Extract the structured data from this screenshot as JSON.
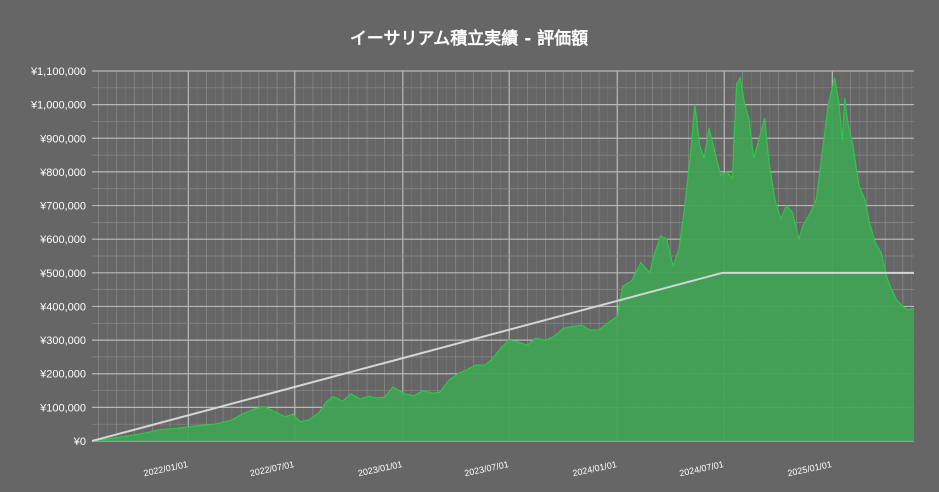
{
  "chart_data": {
    "type": "area",
    "title": "イーサリアム積立実績 ‐ 評価額",
    "xlabel": "",
    "ylabel": "",
    "x_range": [
      "2021/07/21",
      "2025/05/20"
    ],
    "ylim": [
      0,
      1100000
    ],
    "y_ticks": [
      0,
      100000,
      200000,
      300000,
      400000,
      500000,
      600000,
      700000,
      800000,
      900000,
      1000000,
      1100000
    ],
    "y_tick_labels": [
      "¥0",
      "¥100,000",
      "¥200,000",
      "¥300,000",
      "¥400,000",
      "¥500,000",
      "¥600,000",
      "¥700,000",
      "¥800,000",
      "¥900,000",
      "¥1,000,000",
      "¥1,100,000"
    ],
    "x_ticks": [
      "2022/01/01",
      "2022/07/01",
      "2023/01/01",
      "2023/07/01",
      "2024/01/01",
      "2024/07/01",
      "2025/01/01"
    ],
    "x_tick_labels": [
      "2022/01/01",
      "2022/07/01",
      "2023/01/01",
      "2023/07/01",
      "2024/01/01",
      "2024/07/01",
      "2025/01/01"
    ],
    "grid": true,
    "legend": "none",
    "colors": {
      "background": "#666666",
      "area_fill": "#3fa454",
      "area_line": "#2fc74a",
      "cost_line": "#d6d6d6",
      "grid": "#8a8a8a",
      "text": "#ffffff"
    },
    "series": [
      {
        "kind": "area",
        "values": [
          [
            "2021/07/21",
            0
          ],
          [
            "2021/09/01",
            10000
          ],
          [
            "2021/10/15",
            22000
          ],
          [
            "2021/11/15",
            34000
          ],
          [
            "2021/12/15",
            38000
          ],
          [
            "2022/01/15",
            45000
          ],
          [
            "2022/02/15",
            50000
          ],
          [
            "2022/03/15",
            62000
          ],
          [
            "2022/04/05",
            82000
          ],
          [
            "2022/04/25",
            96000
          ],
          [
            "2022/05/10",
            102000
          ],
          [
            "2022/05/25",
            90000
          ],
          [
            "2022/06/15",
            72000
          ],
          [
            "2022/06/28",
            80000
          ],
          [
            "2022/07/10",
            57000
          ],
          [
            "2022/07/25",
            63000
          ],
          [
            "2022/08/10",
            82000
          ],
          [
            "2022/08/25",
            118000
          ],
          [
            "2022/09/05",
            132000
          ],
          [
            "2022/09/20",
            118000
          ],
          [
            "2022/10/05",
            140000
          ],
          [
            "2022/10/20",
            125000
          ],
          [
            "2022/11/05",
            133000
          ],
          [
            "2022/11/15",
            128000
          ],
          [
            "2022/12/01",
            130000
          ],
          [
            "2022/12/15",
            160000
          ],
          [
            "2022/12/25",
            150000
          ],
          [
            "2023/01/05",
            140000
          ],
          [
            "2023/01/20",
            135000
          ],
          [
            "2023/02/05",
            150000
          ],
          [
            "2023/02/20",
            142000
          ],
          [
            "2023/03/05",
            145000
          ],
          [
            "2023/03/20",
            180000
          ],
          [
            "2023/04/05",
            200000
          ],
          [
            "2023/04/20",
            212000
          ],
          [
            "2023/05/05",
            226000
          ],
          [
            "2023/05/20",
            225000
          ],
          [
            "2023/06/01",
            242000
          ],
          [
            "2023/06/15",
            272000
          ],
          [
            "2023/06/30",
            300000
          ],
          [
            "2023/07/15",
            295000
          ],
          [
            "2023/08/01",
            285000
          ],
          [
            "2023/08/15",
            305000
          ],
          [
            "2023/09/01",
            300000
          ],
          [
            "2023/09/15",
            310000
          ],
          [
            "2023/10/01",
            335000
          ],
          [
            "2023/10/15",
            340000
          ],
          [
            "2023/11/01",
            345000
          ],
          [
            "2023/11/15",
            330000
          ],
          [
            "2023/12/01",
            330000
          ],
          [
            "2023/12/15",
            350000
          ],
          [
            "2024/01/01",
            370000
          ],
          [
            "2024/01/10",
            460000
          ],
          [
            "2024/01/25",
            475000
          ],
          [
            "2024/02/10",
            530000
          ],
          [
            "2024/02/25",
            500000
          ],
          [
            "2024/03/05",
            560000
          ],
          [
            "2024/03/15",
            610000
          ],
          [
            "2024/03/25",
            600000
          ],
          [
            "2024/04/05",
            520000
          ],
          [
            "2024/04/15",
            570000
          ],
          [
            "2024/04/25",
            700000
          ],
          [
            "2024/05/05",
            860000
          ],
          [
            "2024/05/12",
            1000000
          ],
          [
            "2024/05/20",
            880000
          ],
          [
            "2024/05/28",
            840000
          ],
          [
            "2024/06/05",
            930000
          ],
          [
            "2024/06/15",
            860000
          ],
          [
            "2024/06/25",
            790000
          ],
          [
            "2024/07/05",
            800000
          ],
          [
            "2024/07/15",
            780000
          ],
          [
            "2024/07/22",
            1060000
          ],
          [
            "2024/07/28",
            1080000
          ],
          [
            "2024/08/05",
            1000000
          ],
          [
            "2024/08/12",
            960000
          ],
          [
            "2024/08/20",
            840000
          ],
          [
            "2024/08/28",
            890000
          ],
          [
            "2024/09/08",
            960000
          ],
          [
            "2024/09/15",
            830000
          ],
          [
            "2024/09/25",
            720000
          ],
          [
            "2024/10/05",
            660000
          ],
          [
            "2024/10/15",
            700000
          ],
          [
            "2024/10/25",
            680000
          ],
          [
            "2024/11/05",
            600000
          ],
          [
            "2024/11/12",
            640000
          ],
          [
            "2024/11/25",
            680000
          ],
          [
            "2024/12/05",
            720000
          ],
          [
            "2024/12/15",
            860000
          ],
          [
            "2024/12/25",
            1000000
          ],
          [
            "2025/01/05",
            1080000
          ],
          [
            "2025/01/12",
            1010000
          ],
          [
            "2025/01/18",
            890000
          ],
          [
            "2025/01/22",
            1020000
          ],
          [
            "2025/01/28",
            940000
          ],
          [
            "2025/02/05",
            880000
          ],
          [
            "2025/02/15",
            760000
          ],
          [
            "2025/02/25",
            720000
          ],
          [
            "2025/03/05",
            650000
          ],
          [
            "2025/03/15",
            590000
          ],
          [
            "2025/03/25",
            560000
          ],
          [
            "2025/04/05",
            480000
          ],
          [
            "2025/04/12",
            450000
          ],
          [
            "2025/04/20",
            420000
          ],
          [
            "2025/05/01",
            400000
          ],
          [
            "2025/05/10",
            390000
          ],
          [
            "2025/05/20",
            395000
          ]
        ]
      },
      {
        "kind": "line",
        "values": [
          [
            "2021/07/21",
            0
          ],
          [
            "2024/06/28",
            500000
          ],
          [
            "2025/05/20",
            500000
          ]
        ]
      }
    ]
  }
}
